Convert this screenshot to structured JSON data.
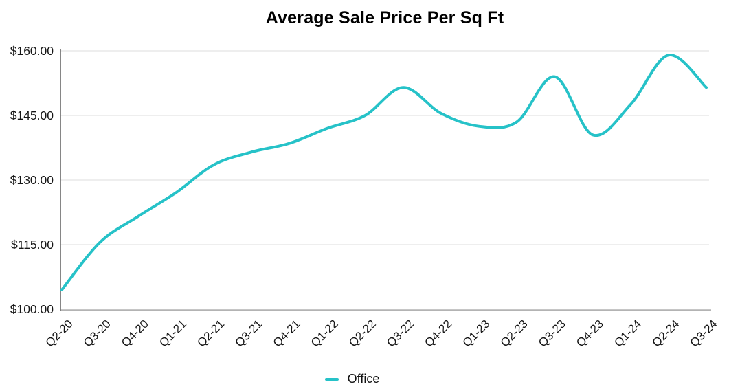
{
  "chart_data": {
    "type": "line",
    "title": "Average Sale Price Per Sq Ft",
    "smooth": true,
    "categories": [
      "Q2-20",
      "Q3-20",
      "Q4-20",
      "Q1-21",
      "Q2-21",
      "Q3-21",
      "Q4-21",
      "Q1-22",
      "Q2-22",
      "Q3-22",
      "Q4-22",
      "Q1-23",
      "Q2-23",
      "Q3-23",
      "Q4-23",
      "Q1-24",
      "Q2-24",
      "Q3-24"
    ],
    "series": [
      {
        "name": "Office",
        "color": "#26c2c8",
        "values": [
          104.5,
          115.5,
          121.5,
          127,
          133.5,
          136.5,
          138.5,
          142,
          145,
          151.5,
          145.5,
          142.5,
          143.5,
          154,
          140.5,
          147.5,
          159,
          151.5
        ]
      }
    ],
    "y_axis": {
      "min": 100,
      "max": 160,
      "tick_values": [
        100,
        115,
        130,
        145,
        160
      ],
      "tick_labels": [
        "$100.00",
        "$115.00",
        "$130.00",
        "$145.00",
        "$160.00"
      ]
    },
    "xlabel": "",
    "ylabel": "",
    "grid": "horizontal",
    "legend": {
      "position": "bottom",
      "items": [
        {
          "label": "Office",
          "color": "#26c2c8"
        }
      ]
    }
  },
  "colors": {
    "line": "#26c2c8",
    "grid": "#e4e4e4",
    "x_axis": "#b3b3b3",
    "y_axis": "#787878",
    "tick_text": "#161616",
    "title_text": "#000000",
    "background": "#ffffff"
  }
}
